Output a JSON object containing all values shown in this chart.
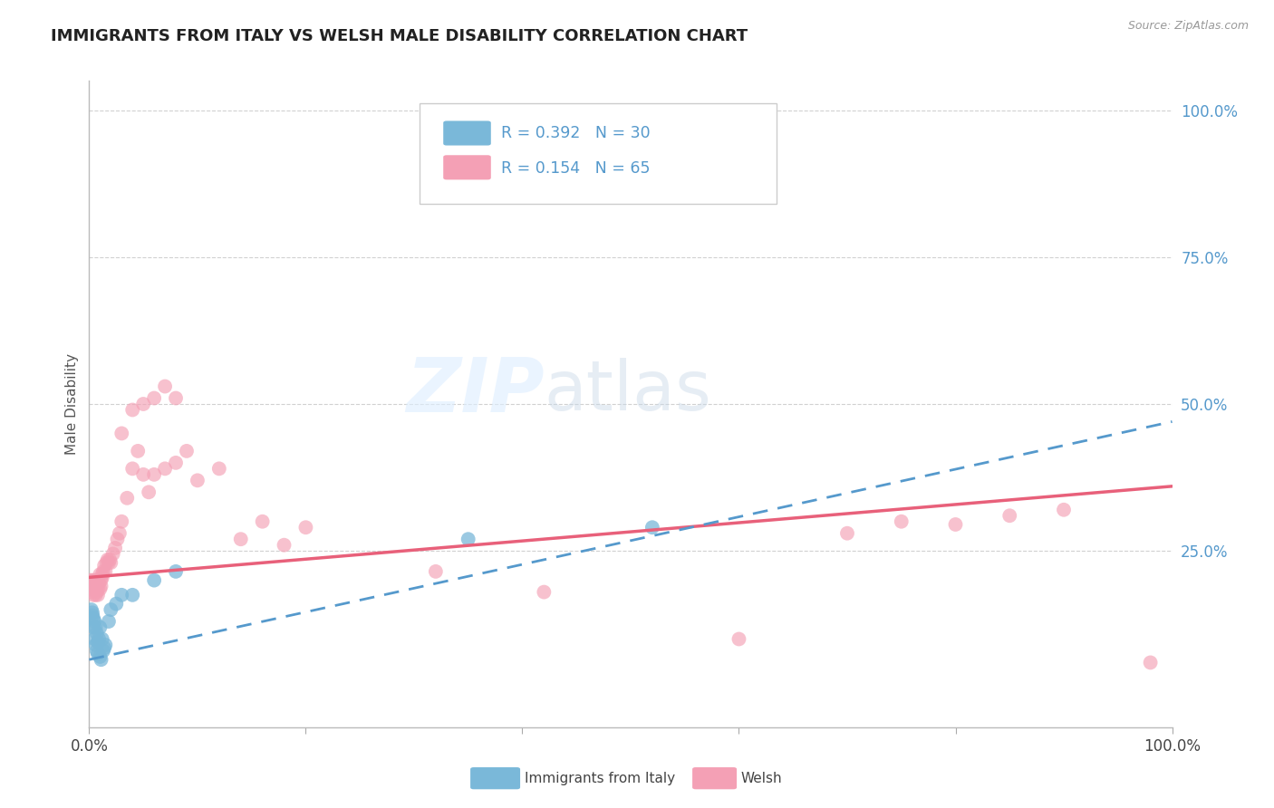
{
  "title": "IMMIGRANTS FROM ITALY VS WELSH MALE DISABILITY CORRELATION CHART",
  "source": "Source: ZipAtlas.com",
  "ylabel": "Male Disability",
  "xlim": [
    0.0,
    1.0
  ],
  "ylim": [
    -0.05,
    1.05
  ],
  "italy_color": "#7ab8d9",
  "welsh_color": "#f4a0b5",
  "italy_line_color": "#5599cc",
  "welsh_line_color": "#e8607a",
  "background_color": "#ffffff",
  "grid_color": "#cccccc",
  "right_axis_color": "#5599cc",
  "italy_points_x": [
    0.002,
    0.003,
    0.003,
    0.004,
    0.004,
    0.005,
    0.005,
    0.006,
    0.006,
    0.007,
    0.007,
    0.008,
    0.008,
    0.009,
    0.01,
    0.01,
    0.011,
    0.012,
    0.013,
    0.014,
    0.015,
    0.018,
    0.02,
    0.025,
    0.03,
    0.04,
    0.06,
    0.08,
    0.35,
    0.52
  ],
  "italy_points_y": [
    0.15,
    0.145,
    0.14,
    0.135,
    0.12,
    0.13,
    0.1,
    0.12,
    0.09,
    0.11,
    0.08,
    0.095,
    0.075,
    0.1,
    0.12,
    0.07,
    0.065,
    0.1,
    0.08,
    0.085,
    0.09,
    0.13,
    0.15,
    0.16,
    0.175,
    0.175,
    0.2,
    0.215,
    0.27,
    0.29
  ],
  "welsh_points_x": [
    0.001,
    0.002,
    0.002,
    0.003,
    0.003,
    0.004,
    0.004,
    0.005,
    0.005,
    0.006,
    0.006,
    0.007,
    0.007,
    0.008,
    0.008,
    0.009,
    0.01,
    0.01,
    0.011,
    0.011,
    0.012,
    0.012,
    0.013,
    0.014,
    0.015,
    0.016,
    0.017,
    0.018,
    0.019,
    0.02,
    0.022,
    0.024,
    0.026,
    0.028,
    0.03,
    0.035,
    0.04,
    0.045,
    0.05,
    0.055,
    0.06,
    0.07,
    0.08,
    0.09,
    0.1,
    0.12,
    0.14,
    0.16,
    0.18,
    0.2,
    0.03,
    0.04,
    0.05,
    0.06,
    0.07,
    0.08,
    0.32,
    0.42,
    0.6,
    0.7,
    0.75,
    0.8,
    0.85,
    0.9,
    0.98
  ],
  "welsh_points_y": [
    0.2,
    0.185,
    0.195,
    0.2,
    0.18,
    0.19,
    0.175,
    0.2,
    0.185,
    0.195,
    0.175,
    0.18,
    0.19,
    0.185,
    0.175,
    0.195,
    0.21,
    0.185,
    0.2,
    0.19,
    0.21,
    0.205,
    0.215,
    0.225,
    0.215,
    0.23,
    0.235,
    0.23,
    0.235,
    0.23,
    0.245,
    0.255,
    0.27,
    0.28,
    0.3,
    0.34,
    0.39,
    0.42,
    0.38,
    0.35,
    0.38,
    0.39,
    0.4,
    0.42,
    0.37,
    0.39,
    0.27,
    0.3,
    0.26,
    0.29,
    0.45,
    0.49,
    0.5,
    0.51,
    0.53,
    0.51,
    0.215,
    0.18,
    0.1,
    0.28,
    0.3,
    0.295,
    0.31,
    0.32,
    0.06
  ],
  "italy_line_x0": 0.0,
  "italy_line_y0": 0.065,
  "italy_line_x1": 1.0,
  "italy_line_y1": 0.47,
  "welsh_line_x0": 0.0,
  "welsh_line_y0": 0.205,
  "welsh_line_x1": 1.0,
  "welsh_line_y1": 0.36
}
